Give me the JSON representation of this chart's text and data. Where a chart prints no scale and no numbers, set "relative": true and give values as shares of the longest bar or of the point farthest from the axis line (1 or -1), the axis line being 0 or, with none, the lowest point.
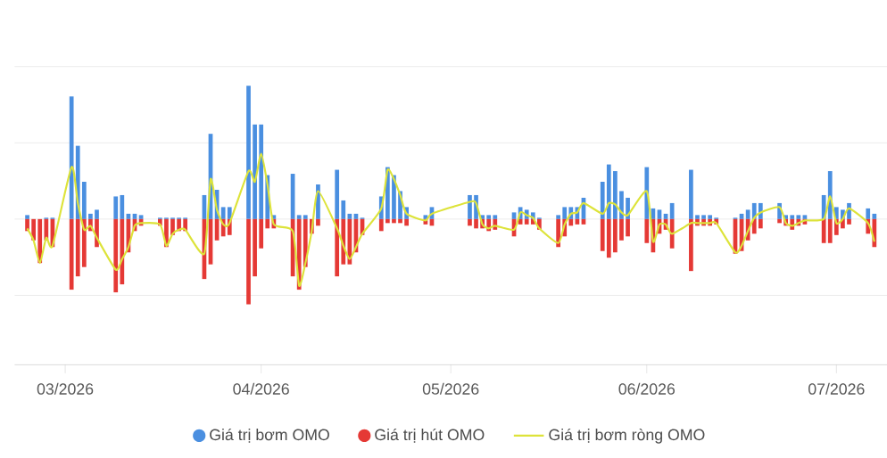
{
  "chart_data": {
    "type": "bar",
    "stacked": true,
    "relative": true,
    "grid": "y",
    "legend": "bottom",
    "xlim": [
      "2026-02-21",
      "2026-07-09"
    ],
    "xticks": [
      {
        "value": "2026-03-01",
        "label": "03/2026"
      },
      {
        "value": "2026-04-01",
        "label": "04/2026"
      },
      {
        "value": "2026-05-01",
        "label": "05/2026"
      },
      {
        "value": "2026-06-01",
        "label": "06/2026"
      },
      {
        "value": "2026-07-01",
        "label": "07/2026"
      }
    ],
    "x": [
      "2026-02-23",
      "2026-02-24",
      "2026-02-25",
      "2026-02-26",
      "2026-02-27",
      "2026-03-02",
      "2026-03-03",
      "2026-03-04",
      "2026-03-05",
      "2026-03-06",
      "2026-03-09",
      "2026-03-10",
      "2026-03-11",
      "2026-03-12",
      "2026-03-13",
      "2026-03-16",
      "2026-03-17",
      "2026-03-18",
      "2026-03-19",
      "2026-03-20",
      "2026-03-23",
      "2026-03-24",
      "2026-03-25",
      "2026-03-26",
      "2026-03-27",
      "2026-03-30",
      "2026-03-31",
      "2026-04-01",
      "2026-04-02",
      "2026-04-03",
      "2026-04-06",
      "2026-04-07",
      "2026-04-08",
      "2026-04-09",
      "2026-04-10",
      "2026-04-13",
      "2026-04-14",
      "2026-04-15",
      "2026-04-16",
      "2026-04-17",
      "2026-04-20",
      "2026-04-21",
      "2026-04-22",
      "2026-04-23",
      "2026-04-24",
      "2026-04-27",
      "2026-04-28",
      "2026-05-04",
      "2026-05-05",
      "2026-05-06",
      "2026-05-07",
      "2026-05-08",
      "2026-05-11",
      "2026-05-12",
      "2026-05-13",
      "2026-05-14",
      "2026-05-15",
      "2026-05-18",
      "2026-05-19",
      "2026-05-20",
      "2026-05-21",
      "2026-05-22",
      "2026-05-25",
      "2026-05-26",
      "2026-05-27",
      "2026-05-28",
      "2026-05-29",
      "2026-06-01",
      "2026-06-02",
      "2026-06-03",
      "2026-06-04",
      "2026-06-05",
      "2026-06-08",
      "2026-06-09",
      "2026-06-10",
      "2026-06-11",
      "2026-06-12",
      "2026-06-15",
      "2026-06-16",
      "2026-06-17",
      "2026-06-18",
      "2026-06-19",
      "2026-06-22",
      "2026-06-23",
      "2026-06-24",
      "2026-06-25",
      "2026-06-26",
      "2026-06-29",
      "2026-06-30",
      "2026-07-01",
      "2026-07-02",
      "2026-07-03",
      "2026-07-06",
      "2026-07-07"
    ],
    "series": [
      {
        "name": "Giá trị bơm OMO",
        "color": "#4a8fe0",
        "values": [
          0.03,
          0,
          0,
          0.01,
          0.01,
          0.92,
          0.55,
          0.28,
          0.04,
          0.07,
          0.17,
          0.18,
          0.04,
          0.04,
          0.03,
          0.01,
          0.01,
          0.01,
          0.01,
          0.01,
          0.18,
          0.64,
          0.22,
          0.09,
          0.09,
          1,
          0.71,
          0.71,
          0.33,
          0.03,
          0.34,
          0.03,
          0.03,
          null,
          0.26,
          0.37,
          0.14,
          0.04,
          0.04,
          0.01,
          0.17,
          0.39,
          0.33,
          0.21,
          0.09,
          0.03,
          0.09,
          0.18,
          0.18,
          0.03,
          0.03,
          0.03,
          0.05,
          0.09,
          0.07,
          0.05,
          0.01,
          0.03,
          0.09,
          0.09,
          0.09,
          0.16,
          0.28,
          0.41,
          0.36,
          0.21,
          0.16,
          0.39,
          0.08,
          0.07,
          0.04,
          0.12,
          0.37,
          0.03,
          0.03,
          0.03,
          0.01,
          0.01,
          0.04,
          0.07,
          0.12,
          0.12,
          0.12,
          0.03,
          0.03,
          0.03,
          0.03,
          0.18,
          0.36,
          0.09,
          0.07,
          0.12,
          0.08,
          0.04
        ]
      },
      {
        "name": "Giá trị hút OMO",
        "color": "#e53935",
        "values": [
          -0.09,
          -0.16,
          -0.33,
          -0.16,
          -0.21,
          -0.53,
          -0.43,
          -0.36,
          -0.09,
          -0.21,
          -0.55,
          -0.49,
          -0.25,
          -0.09,
          -0.05,
          -0.05,
          -0.21,
          -0.12,
          -0.09,
          -0.09,
          -0.45,
          -0.34,
          -0.16,
          -0.13,
          -0.12,
          -0.64,
          -0.43,
          -0.22,
          -0.07,
          -0.07,
          -0.43,
          -0.53,
          -0.36,
          -0.11,
          -0.05,
          -0.43,
          -0.34,
          -0.34,
          -0.25,
          -0.12,
          -0.09,
          -0.03,
          -0.03,
          -0.03,
          -0.05,
          -0.04,
          -0.05,
          -0.05,
          -0.07,
          -0.07,
          -0.09,
          -0.08,
          -0.13,
          -0.04,
          -0.04,
          -0.04,
          -0.08,
          -0.21,
          -0.13,
          -0.05,
          -0.04,
          -0.04,
          -0.24,
          -0.29,
          -0.25,
          -0.16,
          -0.13,
          -0.18,
          -0.25,
          -0.11,
          -0.08,
          -0.22,
          -0.39,
          -0.05,
          -0.05,
          -0.05,
          -0.04,
          -0.26,
          -0.24,
          -0.16,
          -0.11,
          -0.07,
          -0.03,
          -0.05,
          -0.08,
          -0.05,
          -0.04,
          -0.18,
          -0.18,
          -0.12,
          -0.07,
          -0.04,
          -0.11,
          -0.21
        ]
      },
      {
        "name": "Giá trị bơm ròng OMO",
        "color": "#dde33a",
        "type": "line",
        "values": [
          -0.07,
          -0.16,
          -0.33,
          -0.14,
          -0.2,
          0.39,
          0.12,
          -0.08,
          -0.05,
          -0.14,
          -0.38,
          -0.3,
          -0.21,
          -0.05,
          -0.03,
          -0.04,
          -0.2,
          -0.11,
          -0.08,
          -0.08,
          -0.26,
          0.3,
          0.07,
          -0.04,
          -0.03,
          0.36,
          0.28,
          0.49,
          0.26,
          -0.04,
          -0.09,
          -0.5,
          -0.33,
          -0.09,
          0.21,
          -0.07,
          -0.2,
          -0.3,
          -0.21,
          -0.11,
          0.08,
          0.37,
          0.3,
          0.18,
          0.04,
          -0.01,
          0.04,
          0.13,
          0.12,
          -0.04,
          -0.07,
          -0.05,
          -0.08,
          0.05,
          0.03,
          0.01,
          -0.07,
          -0.18,
          -0.04,
          0.04,
          0.05,
          0.12,
          0.04,
          0.12,
          0.11,
          0.05,
          0.03,
          0.21,
          -0.17,
          -0.04,
          -0.04,
          -0.11,
          -0.03,
          -0.03,
          -0.03,
          -0.03,
          -0.03,
          -0.25,
          -0.2,
          -0.09,
          0.01,
          0.05,
          0.09,
          -0.03,
          -0.05,
          -0.03,
          -0.01,
          0,
          0.17,
          -0.03,
          0,
          0.08,
          -0.03,
          -0.17
        ]
      }
    ]
  }
}
